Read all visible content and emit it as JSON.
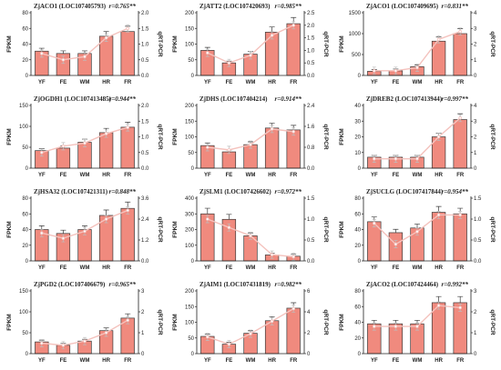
{
  "axis_titles": {
    "left": "FPKM",
    "right": "qRT-PCR"
  },
  "colors": {
    "bar": "#f08a7e",
    "bar_edge": "#3a3a3a",
    "line": "#f4c2bd",
    "error": "#bdbdbd",
    "axis": "#222222"
  },
  "chart_data": [
    {
      "type": "bar",
      "title": "ZjACO1 (LOC107405793)",
      "r": "r=0.765**",
      "categories": [
        "YF",
        "FE",
        "WM",
        "HR",
        "FR"
      ],
      "yticks_left": [
        "0",
        "20",
        "40",
        "60",
        "80"
      ],
      "yticks_right": [
        "0.0",
        "0.5",
        "1.0",
        "1.5",
        "2.0"
      ],
      "ylim_left": [
        0,
        80
      ],
      "ylim_right": [
        0,
        2.0
      ],
      "series": [
        {
          "values": [
            31,
            28,
            28,
            50,
            56
          ]
        },
        {
          "values": [
            0.7,
            0.5,
            0.6,
            1.2,
            1.5
          ]
        }
      ]
    },
    {
      "type": "bar",
      "title": "ZjATT2 (LOC107420693)",
      "r": "r=0.985**",
      "categories": [
        "YF",
        "FE",
        "WM",
        "HR",
        "FR"
      ],
      "yticks_left": [
        "0",
        "50",
        "100",
        "150",
        "200"
      ],
      "yticks_right": [
        "0.0",
        "0.5",
        "1.0",
        "1.5",
        "2.0",
        "2.5"
      ],
      "ylim_left": [
        0,
        200
      ],
      "ylim_right": [
        0,
        2.5
      ],
      "series": [
        {
          "values": [
            80,
            40,
            68,
            138,
            165
          ]
        },
        {
          "values": [
            0.9,
            0.5,
            0.8,
            1.6,
            2.0
          ]
        }
      ]
    },
    {
      "type": "bar",
      "title": "ZjACO1 (LOC107409695)",
      "r": "r=0.831**",
      "categories": [
        "YF",
        "FE",
        "WM",
        "HR",
        "FR"
      ],
      "yticks_left": [
        "0",
        "500",
        "1000",
        "1500"
      ],
      "yticks_right": [
        "0",
        "1",
        "2",
        "3",
        "4"
      ],
      "ylim_left": [
        0,
        1500
      ],
      "ylim_right": [
        0,
        4
      ],
      "series": [
        {
          "values": [
            100,
            110,
            210,
            820,
            1000
          ]
        },
        {
          "values": [
            0.3,
            0.3,
            0.5,
            2.3,
            2.8
          ]
        }
      ]
    },
    {
      "type": "bar",
      "title": "ZjOGDH1 (LOC107413485)",
      "r": "r=0.944**",
      "categories": [
        "YF",
        "FE",
        "WM",
        "HR",
        "FR"
      ],
      "yticks_left": [
        "0",
        "50",
        "100",
        "150"
      ],
      "yticks_right": [
        "0.0",
        "0.5",
        "1.0",
        "1.5",
        "2.0"
      ],
      "ylim_left": [
        0,
        150
      ],
      "ylim_right": [
        0,
        2.0
      ],
      "series": [
        {
          "values": [
            42,
            48,
            62,
            85,
            98
          ]
        },
        {
          "values": [
            0.5,
            0.7,
            0.8,
            1.1,
            1.3
          ]
        }
      ]
    },
    {
      "type": "bar",
      "title": "ZjDHS (LOC107404214)",
      "r": "r=0.914**",
      "categories": [
        "YF",
        "FE",
        "WM",
        "HR",
        "FR"
      ],
      "yticks_left": [
        "0",
        "50",
        "100",
        "150",
        "200"
      ],
      "yticks_right": [
        "0.0",
        "0.8",
        "1.6",
        "2.4"
      ],
      "ylim_left": [
        0,
        200
      ],
      "ylim_right": [
        0,
        2.4
      ],
      "series": [
        {
          "values": [
            72,
            52,
            75,
            128,
            122
          ]
        },
        {
          "values": [
            0.8,
            0.7,
            0.9,
            1.5,
            1.4
          ]
        }
      ]
    },
    {
      "type": "bar",
      "title": "ZjDREB2 (LOC107413944)",
      "r": "r=0.997**",
      "categories": [
        "YF",
        "FE",
        "WM",
        "HR",
        "FR"
      ],
      "yticks_left": [
        "0",
        "10",
        "20",
        "30",
        "40"
      ],
      "yticks_right": [
        "0",
        "1",
        "2",
        "3",
        "4"
      ],
      "ylim_left": [
        0,
        40
      ],
      "ylim_right": [
        0,
        4
      ],
      "series": [
        {
          "values": [
            7,
            7,
            7,
            20,
            31
          ]
        },
        {
          "values": [
            0.6,
            0.6,
            0.6,
            2.0,
            3.2
          ]
        }
      ]
    },
    {
      "type": "bar",
      "title": "ZjHSA32 (LOC107421311)",
      "r": "r=0.848**",
      "categories": [
        "YF",
        "FE",
        "WM",
        "HR",
        "FR"
      ],
      "yticks_left": [
        "0",
        "20",
        "40",
        "60",
        "80"
      ],
      "yticks_right": [
        "0.0",
        "1.2",
        "2.4",
        "3.6"
      ],
      "ylim_left": [
        0,
        80
      ],
      "ylim_right": [
        0,
        3.6
      ],
      "series": [
        {
          "values": [
            40,
            35,
            40,
            58,
            67
          ]
        },
        {
          "values": [
            1.6,
            1.3,
            1.7,
            2.4,
            2.9
          ]
        }
      ]
    },
    {
      "type": "bar",
      "title": "ZjSLM1 (LOC107426602)",
      "r": "r=0.972**",
      "categories": [
        "YF",
        "FE",
        "WM",
        "HR",
        "FR"
      ],
      "yticks_left": [
        "0",
        "100",
        "200",
        "300",
        "400"
      ],
      "yticks_right": [
        "0.0",
        "0.5",
        "1.0",
        "1.5"
      ],
      "ylim_left": [
        0,
        400
      ],
      "ylim_right": [
        0,
        1.5
      ],
      "series": [
        {
          "values": [
            300,
            265,
            160,
            38,
            30
          ]
        },
        {
          "values": [
            1.0,
            0.8,
            0.6,
            0.15,
            0.1
          ]
        }
      ]
    },
    {
      "type": "bar",
      "title": "ZjSUCLG (LOC107417844)",
      "r": "r=0.954**",
      "categories": [
        "YF",
        "FE",
        "WM",
        "HR",
        "FR"
      ],
      "yticks_left": [
        "0",
        "20",
        "40",
        "60",
        "80"
      ],
      "yticks_right": [
        "0.0",
        "0.5",
        "1.0",
        "1.5"
      ],
      "ylim_left": [
        0,
        80
      ],
      "ylim_right": [
        0,
        1.5
      ],
      "series": [
        {
          "values": [
            50,
            36,
            42,
            62,
            60
          ]
        },
        {
          "values": [
            0.9,
            0.4,
            0.7,
            1.1,
            1.1
          ]
        }
      ]
    },
    {
      "type": "bar",
      "title": "ZjPGD2 (LOC107406679)",
      "r": "r=0.965**",
      "categories": [
        "YF",
        "FE",
        "WM",
        "HR",
        "FR"
      ],
      "yticks_left": [
        "0",
        "50",
        "100",
        "150"
      ],
      "yticks_right": [
        "0",
        "1",
        "2",
        "3"
      ],
      "ylim_left": [
        0,
        150
      ],
      "ylim_right": [
        0,
        3
      ],
      "series": [
        {
          "values": [
            28,
            20,
            30,
            55,
            85
          ]
        },
        {
          "values": [
            0.5,
            0.4,
            0.6,
            1.0,
            1.6
          ]
        }
      ]
    },
    {
      "type": "bar",
      "title": "ZjAIM1 (LOC107431819)",
      "r": "r=0.982**",
      "categories": [
        "YF",
        "FE",
        "WM",
        "HR",
        "FR"
      ],
      "yticks_left": [
        "0",
        "50",
        "100",
        "150",
        "200"
      ],
      "yticks_right": [
        "0",
        "2",
        "4",
        "6"
      ],
      "ylim_left": [
        0,
        200
      ],
      "ylim_right": [
        0,
        6
      ],
      "series": [
        {
          "values": [
            55,
            30,
            65,
            105,
            145
          ]
        },
        {
          "values": [
            1.6,
            0.9,
            1.9,
            3.1,
            4.3
          ]
        }
      ]
    },
    {
      "type": "bar",
      "title": "ZjACO2 (LOC107424464)",
      "r": "r=0.992**",
      "categories": [
        "YF",
        "FE",
        "WM",
        "HR",
        "FR"
      ],
      "yticks_left": [
        "0",
        "20",
        "40",
        "60",
        "80"
      ],
      "yticks_right": [
        "0",
        "1",
        "2",
        "3"
      ],
      "ylim_left": [
        0,
        80
      ],
      "ylim_right": [
        0,
        3
      ],
      "series": [
        {
          "values": [
            38,
            38,
            38,
            65,
            65
          ]
        },
        {
          "values": [
            1.3,
            1.3,
            1.3,
            2.3,
            2.2
          ]
        }
      ]
    }
  ]
}
